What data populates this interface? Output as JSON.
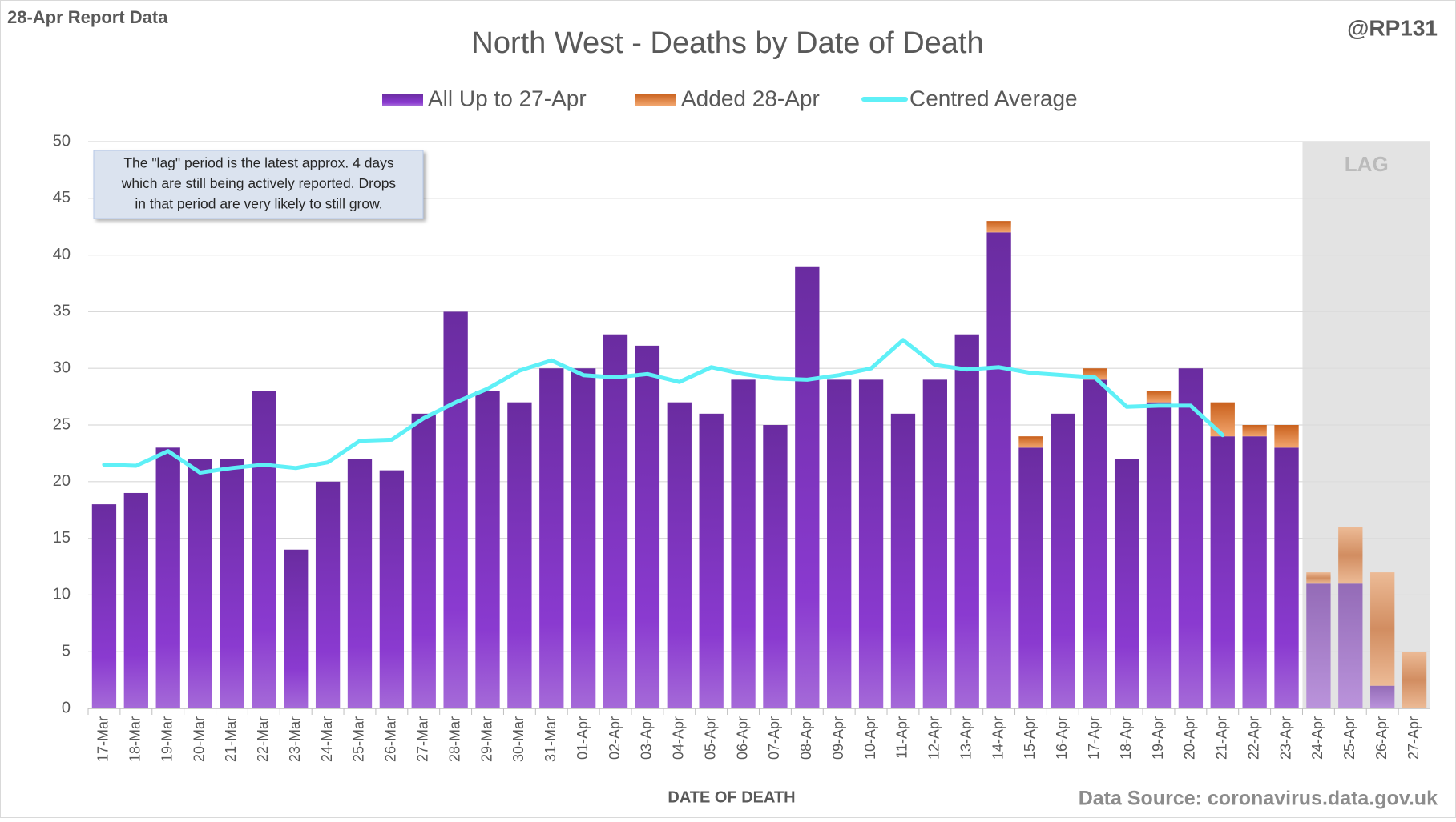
{
  "report_label": "28-Apr Report Data",
  "handle": "@RP131",
  "source": "Data Source: coronavirus.data.gov.uk",
  "chart_data": {
    "type": "bar",
    "stacked": true,
    "title": "North West - Deaths by Date of Death",
    "x_label": "DATE OF DEATH",
    "annotation": [
      "The \"lag\" period is the latest approx. 4 days",
      "which are still being actively reported.  Drops",
      "in that period are very likely to still grow."
    ],
    "lag_label": "LAG",
    "lag_start": "24-Apr",
    "categories": [
      "17-Mar",
      "18-Mar",
      "19-Mar",
      "20-Mar",
      "21-Mar",
      "22-Mar",
      "23-Mar",
      "24-Mar",
      "25-Mar",
      "26-Mar",
      "27-Mar",
      "28-Mar",
      "29-Mar",
      "30-Mar",
      "31-Mar",
      "01-Apr",
      "02-Apr",
      "03-Apr",
      "04-Apr",
      "05-Apr",
      "06-Apr",
      "07-Apr",
      "08-Apr",
      "09-Apr",
      "10-Apr",
      "11-Apr",
      "12-Apr",
      "13-Apr",
      "14-Apr",
      "15-Apr",
      "16-Apr",
      "17-Apr",
      "18-Apr",
      "19-Apr",
      "20-Apr",
      "21-Apr",
      "22-Apr",
      "23-Apr",
      "24-Apr",
      "25-Apr",
      "26-Apr",
      "27-Apr"
    ],
    "series": [
      {
        "name": "All Up to 27-Apr",
        "type": "bar",
        "color": "#7030a0",
        "values": [
          18,
          19,
          23,
          22,
          22,
          28,
          14,
          20,
          22,
          21,
          26,
          35,
          28,
          27,
          30,
          30,
          33,
          32,
          27,
          26,
          29,
          25,
          39,
          29,
          29,
          26,
          29,
          33,
          42,
          23,
          26,
          29,
          22,
          27,
          30,
          24,
          24,
          23,
          11,
          11,
          2,
          0
        ]
      },
      {
        "name": "Added 28-Apr",
        "type": "bar",
        "color": "#e07b39",
        "values": [
          0,
          0,
          0,
          0,
          0,
          0,
          0,
          0,
          0,
          0,
          0,
          0,
          0,
          0,
          0,
          0,
          0,
          0,
          0,
          0,
          0,
          0,
          0,
          0,
          0,
          0,
          0,
          0,
          1,
          1,
          0,
          1,
          0,
          1,
          0,
          3,
          1,
          2,
          1,
          5,
          10,
          5
        ]
      },
      {
        "name": "Centred Average",
        "type": "line",
        "color": "#5ff0f7",
        "values": [
          21.5,
          21.4,
          22.7,
          20.8,
          21.2,
          21.5,
          21.2,
          21.7,
          23.6,
          23.7,
          25.6,
          27,
          28.2,
          29.8,
          30.7,
          29.4,
          29.2,
          29.5,
          28.8,
          30.1,
          29.5,
          29.1,
          29,
          29.4,
          30,
          32.5,
          30.3,
          29.9,
          30.1,
          29.6,
          29.4,
          29.2,
          26.6,
          26.7,
          26.7,
          24.1,
          null,
          null,
          null,
          null,
          null,
          null
        ]
      }
    ],
    "ylim": [
      0,
      50
    ],
    "yticks": [
      0,
      5,
      10,
      15,
      20,
      25,
      30,
      35,
      40,
      45,
      50
    ],
    "grid": true
  }
}
